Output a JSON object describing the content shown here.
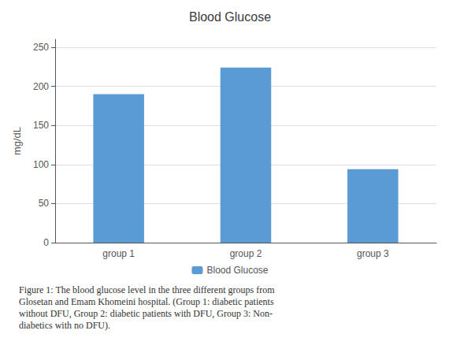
{
  "chart_data": {
    "type": "bar",
    "title": "Blood Glucose",
    "categories": [
      "group 1",
      "group 2",
      "group 3"
    ],
    "series": [
      {
        "name": "Blood Glucose",
        "color": "#5B9BD5",
        "values": [
          190,
          224,
          94
        ]
      }
    ],
    "ylabel": "mg/dL",
    "ylim": [
      0,
      260
    ],
    "yticks": [
      0,
      50,
      100,
      150,
      200,
      250
    ],
    "grid": true,
    "legend": "bottom",
    "annotations": [
      "Figure 1: The blood glucose level in the three different groups from\nGlosetan and Emam Khomeini hospital. (Group 1: diabetic patients\nwithout DFU, Group 2: diabetic patients with DFU, Group 3: Non-\ndiabetics with no DFU)."
    ]
  }
}
